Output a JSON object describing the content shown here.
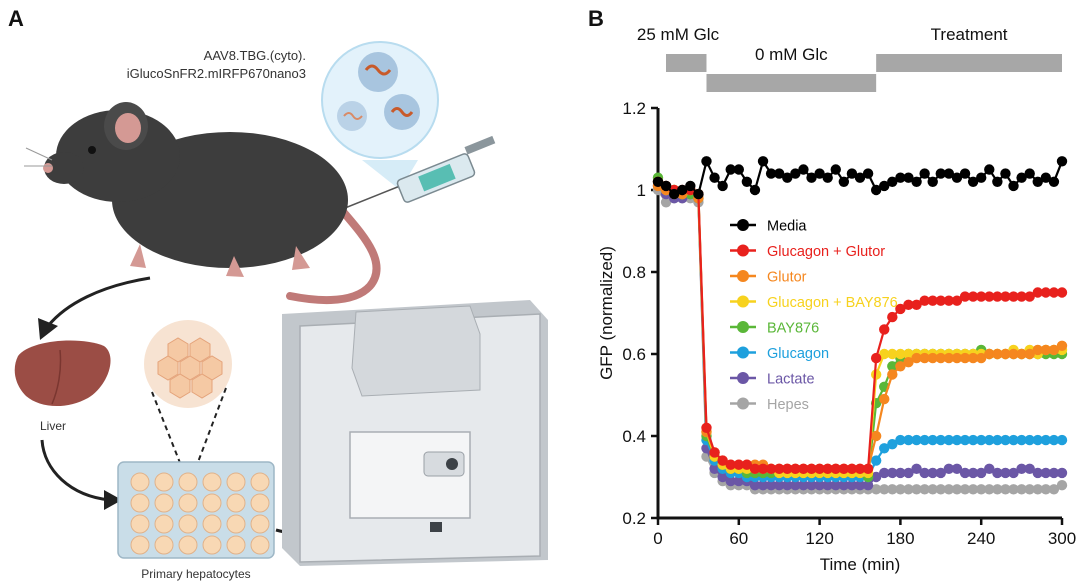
{
  "panel_a": {
    "letter": "A",
    "vector_line1": "AAV8.TBG.(cyto).",
    "vector_line2": "iGlucoSnFR2.mIRFP670nano3",
    "liver_label": "Liver",
    "hepatocytes_label": "Primary hepatocytes"
  },
  "panel_b": {
    "letter": "B",
    "protocol": [
      {
        "label": "25 mM Glc",
        "t_start": 0,
        "t_end": 36,
        "level": "high"
      },
      {
        "label": "0 mM Glc",
        "t_start": 36,
        "t_end": 162,
        "level": "low"
      },
      {
        "label": "Treatment",
        "t_start": 162,
        "t_end": 300,
        "level": "high"
      }
    ]
  },
  "chart_data": {
    "type": "line",
    "xlabel": "Time (min)",
    "ylabel": "GFP (normalized)",
    "xlim": [
      0,
      300
    ],
    "ylim": [
      0.2,
      1.2
    ],
    "xticks": [
      0,
      60,
      120,
      180,
      240,
      300
    ],
    "yticks": [
      0.2,
      0.4,
      0.6,
      0.8,
      1.0,
      1.2
    ],
    "ytick_labels": [
      "0.2",
      "0.4",
      "0.6",
      "0.8",
      "1",
      "1.2"
    ],
    "legend_position": "center",
    "t_start": 0,
    "t_step": 6,
    "series": [
      {
        "name": "Media",
        "color": "#000000",
        "values": [
          1.02,
          1.01,
          0.99,
          1.0,
          1.01,
          0.99,
          1.07,
          1.03,
          1.01,
          1.05,
          1.05,
          1.02,
          1.0,
          1.07,
          1.04,
          1.04,
          1.03,
          1.04,
          1.05,
          1.03,
          1.04,
          1.03,
          1.05,
          1.02,
          1.04,
          1.03,
          1.04,
          1.0,
          1.01,
          1.02,
          1.03,
          1.03,
          1.02,
          1.04,
          1.02,
          1.04,
          1.04,
          1.03,
          1.04,
          1.02,
          1.03,
          1.05,
          1.02,
          1.04,
          1.01,
          1.03,
          1.04,
          1.02,
          1.03,
          1.02,
          1.07
        ]
      },
      {
        "name": "Glucagon + Glutor",
        "color": "#e8211d",
        "values": [
          1.02,
          1.01,
          1.0,
          1.0,
          1.0,
          0.99,
          0.42,
          0.36,
          0.34,
          0.33,
          0.33,
          0.33,
          0.32,
          0.32,
          0.32,
          0.32,
          0.32,
          0.32,
          0.32,
          0.32,
          0.32,
          0.32,
          0.32,
          0.32,
          0.32,
          0.32,
          0.32,
          0.59,
          0.66,
          0.69,
          0.71,
          0.72,
          0.72,
          0.73,
          0.73,
          0.73,
          0.73,
          0.73,
          0.74,
          0.74,
          0.74,
          0.74,
          0.74,
          0.74,
          0.74,
          0.74,
          0.74,
          0.75,
          0.75,
          0.75,
          0.75
        ]
      },
      {
        "name": "Glutor",
        "color": "#f5871f",
        "values": [
          1.01,
          1.0,
          0.99,
          0.99,
          1.0,
          0.98,
          0.41,
          0.36,
          0.34,
          0.33,
          0.33,
          0.33,
          0.33,
          0.33,
          0.32,
          0.32,
          0.32,
          0.32,
          0.32,
          0.32,
          0.32,
          0.32,
          0.32,
          0.32,
          0.32,
          0.32,
          0.32,
          0.4,
          0.49,
          0.55,
          0.57,
          0.58,
          0.59,
          0.59,
          0.59,
          0.59,
          0.59,
          0.59,
          0.59,
          0.59,
          0.59,
          0.6,
          0.6,
          0.6,
          0.6,
          0.6,
          0.6,
          0.61,
          0.61,
          0.61,
          0.62
        ]
      },
      {
        "name": "Glucagon + BAY876",
        "color": "#f7d21e",
        "values": [
          1.02,
          1.0,
          1.0,
          0.99,
          1.0,
          0.99,
          0.41,
          0.35,
          0.33,
          0.32,
          0.32,
          0.32,
          0.32,
          0.32,
          0.32,
          0.31,
          0.31,
          0.31,
          0.31,
          0.31,
          0.31,
          0.31,
          0.31,
          0.31,
          0.31,
          0.31,
          0.31,
          0.55,
          0.6,
          0.6,
          0.6,
          0.6,
          0.6,
          0.6,
          0.6,
          0.6,
          0.6,
          0.6,
          0.6,
          0.6,
          0.6,
          0.6,
          0.6,
          0.6,
          0.61,
          0.6,
          0.61,
          0.6,
          0.61,
          0.61,
          0.61
        ]
      },
      {
        "name": "BAY876",
        "color": "#5ab738",
        "values": [
          1.03,
          1.01,
          1.0,
          0.99,
          0.99,
          0.98,
          0.4,
          0.35,
          0.33,
          0.32,
          0.32,
          0.31,
          0.31,
          0.31,
          0.31,
          0.31,
          0.31,
          0.31,
          0.31,
          0.31,
          0.31,
          0.31,
          0.31,
          0.31,
          0.31,
          0.31,
          0.3,
          0.48,
          0.52,
          0.57,
          0.59,
          0.6,
          0.6,
          0.6,
          0.6,
          0.6,
          0.6,
          0.6,
          0.6,
          0.6,
          0.61,
          0.6,
          0.6,
          0.6,
          0.6,
          0.6,
          0.6,
          0.6,
          0.6,
          0.6,
          0.6
        ]
      },
      {
        "name": "Glucagon",
        "color": "#1ea0dd",
        "values": [
          1.02,
          1.0,
          0.99,
          0.99,
          1.0,
          0.99,
          0.39,
          0.34,
          0.32,
          0.31,
          0.31,
          0.3,
          0.3,
          0.3,
          0.3,
          0.3,
          0.3,
          0.3,
          0.3,
          0.3,
          0.3,
          0.3,
          0.3,
          0.3,
          0.3,
          0.3,
          0.3,
          0.34,
          0.37,
          0.38,
          0.39,
          0.39,
          0.39,
          0.39,
          0.39,
          0.39,
          0.39,
          0.39,
          0.39,
          0.39,
          0.39,
          0.39,
          0.39,
          0.39,
          0.39,
          0.39,
          0.39,
          0.39,
          0.39,
          0.39,
          0.39
        ]
      },
      {
        "name": "Lactate",
        "color": "#6b57a6",
        "values": [
          1.01,
          0.99,
          0.98,
          0.98,
          0.99,
          0.98,
          0.37,
          0.32,
          0.3,
          0.29,
          0.29,
          0.29,
          0.28,
          0.28,
          0.28,
          0.28,
          0.28,
          0.28,
          0.28,
          0.28,
          0.28,
          0.28,
          0.28,
          0.28,
          0.28,
          0.28,
          0.28,
          0.3,
          0.31,
          0.31,
          0.31,
          0.31,
          0.32,
          0.31,
          0.31,
          0.31,
          0.32,
          0.32,
          0.31,
          0.31,
          0.31,
          0.32,
          0.31,
          0.31,
          0.31,
          0.32,
          0.32,
          0.31,
          0.31,
          0.31,
          0.31
        ]
      },
      {
        "name": "Hepes",
        "color": "#a5a5a5",
        "values": [
          1.0,
          0.97,
          0.98,
          0.98,
          0.98,
          0.97,
          0.35,
          0.31,
          0.29,
          0.28,
          0.28,
          0.28,
          0.27,
          0.27,
          0.27,
          0.27,
          0.27,
          0.27,
          0.27,
          0.27,
          0.27,
          0.27,
          0.27,
          0.27,
          0.27,
          0.27,
          0.27,
          0.27,
          0.27,
          0.27,
          0.27,
          0.27,
          0.27,
          0.27,
          0.27,
          0.27,
          0.27,
          0.27,
          0.27,
          0.27,
          0.27,
          0.27,
          0.27,
          0.27,
          0.27,
          0.27,
          0.27,
          0.27,
          0.27,
          0.27,
          0.28
        ]
      }
    ]
  }
}
